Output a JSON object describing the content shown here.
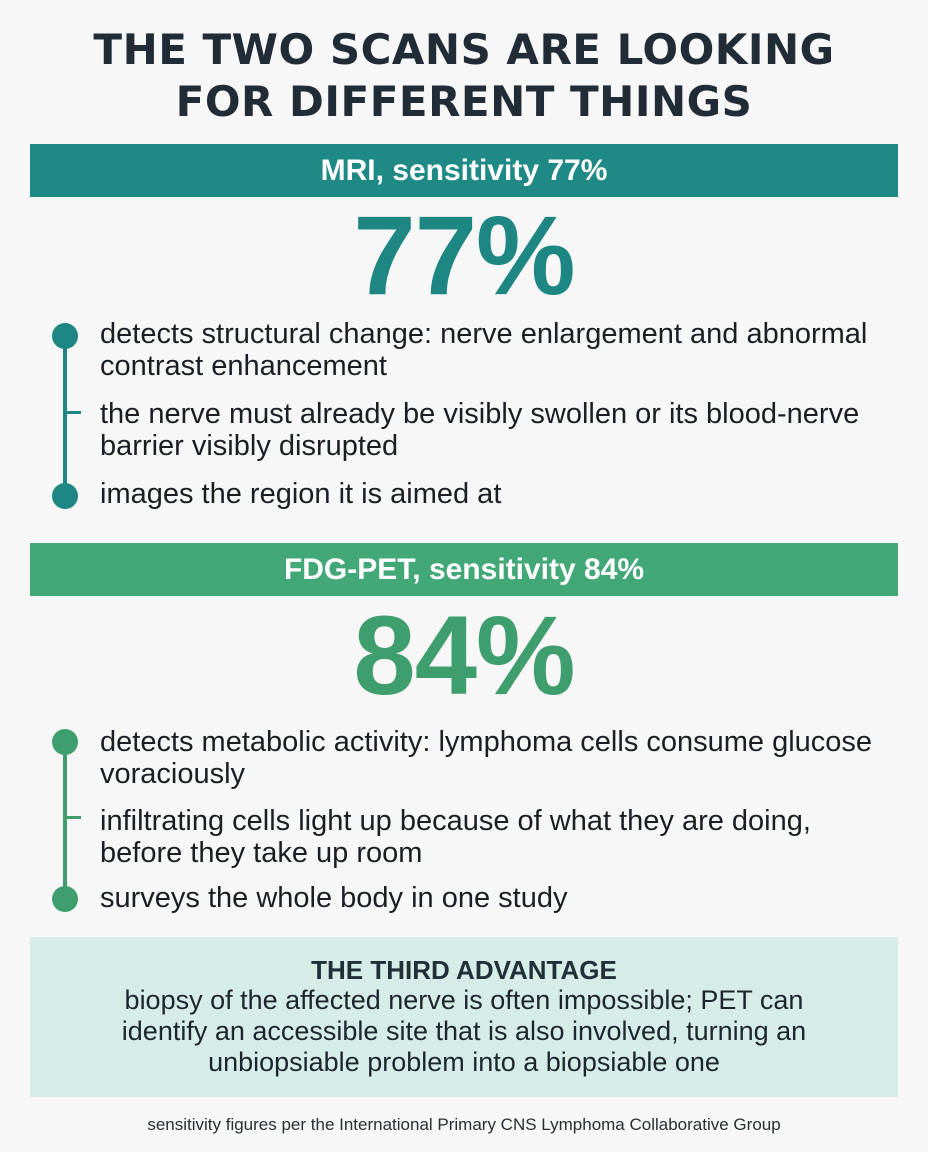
{
  "title": {
    "line1": "THE TWO SCANS ARE LOOKING",
    "line2": "FOR DIFFERENT THINGS"
  },
  "mri": {
    "band": "MRI, sensitivity 77%",
    "big_stat": "77%",
    "sensitivity_percent": 77,
    "accent_color": "#1f8a85",
    "points": [
      "detects structural change: nerve enlargement and abnormal contrast enhancement",
      "the nerve must already be visibly swollen or its blood-nerve barrier visibly disrupted",
      "images the region it is aimed at"
    ]
  },
  "pet": {
    "band": "FDG-PET, sensitivity 84%",
    "big_stat": "84%",
    "sensitivity_percent": 84,
    "accent_color": "#43a877",
    "points": [
      "detects metabolic activity: lymphoma cells consume glucose voraciously",
      "infiltrating cells light up because of what they are doing, before they take up room",
      "surveys the whole body in one study"
    ]
  },
  "callout": {
    "heading": "THE THIRD ADVANTAGE",
    "body": "biopsy of the affected nerve is often impossible; PET can identify an accessible site that is also involved, turning an unbiopsiable problem into a biopsiable one",
    "background_color": "#d6ece6"
  },
  "footnote": "sensitivity figures per the International Primary CNS Lymphoma Collaborative Group"
}
